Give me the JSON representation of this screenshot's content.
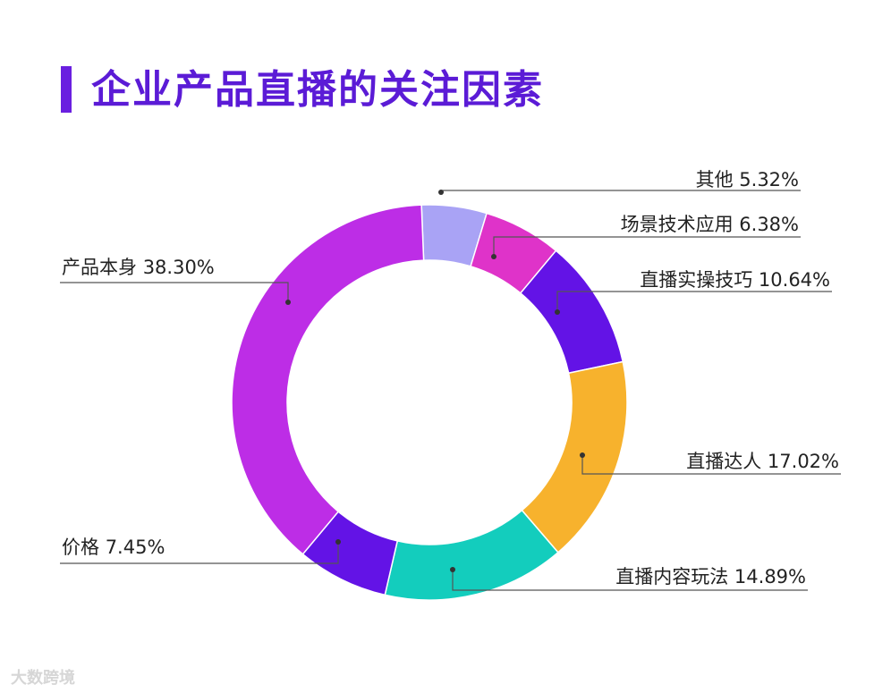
{
  "title": "企业产品直播的关注因素",
  "watermark": "大数跨境",
  "chart_data": {
    "type": "pie",
    "subtype": "donut",
    "title": "企业产品直播的关注因素",
    "slices": [
      {
        "label": "其他",
        "value": 5.32,
        "display": "5.32%",
        "color": "#a9a3f5"
      },
      {
        "label": "场景技术应用",
        "value": 6.38,
        "display": "6.38%",
        "color": "#df33c9"
      },
      {
        "label": "直播实操技巧",
        "value": 10.64,
        "display": "10.64%",
        "color": "#6313e6"
      },
      {
        "label": "直播达人",
        "value": 17.02,
        "display": "17.02%",
        "color": "#f7b22d"
      },
      {
        "label": "直播内容玩法",
        "value": 14.89,
        "display": "14.89%",
        "color": "#13cdbd"
      },
      {
        "label": "价格",
        "value": 7.45,
        "display": "7.45%",
        "color": "#6313e6"
      },
      {
        "label": "产品本身",
        "value": 38.3,
        "display": "38.30%",
        "color": "#bd2de6"
      }
    ]
  }
}
